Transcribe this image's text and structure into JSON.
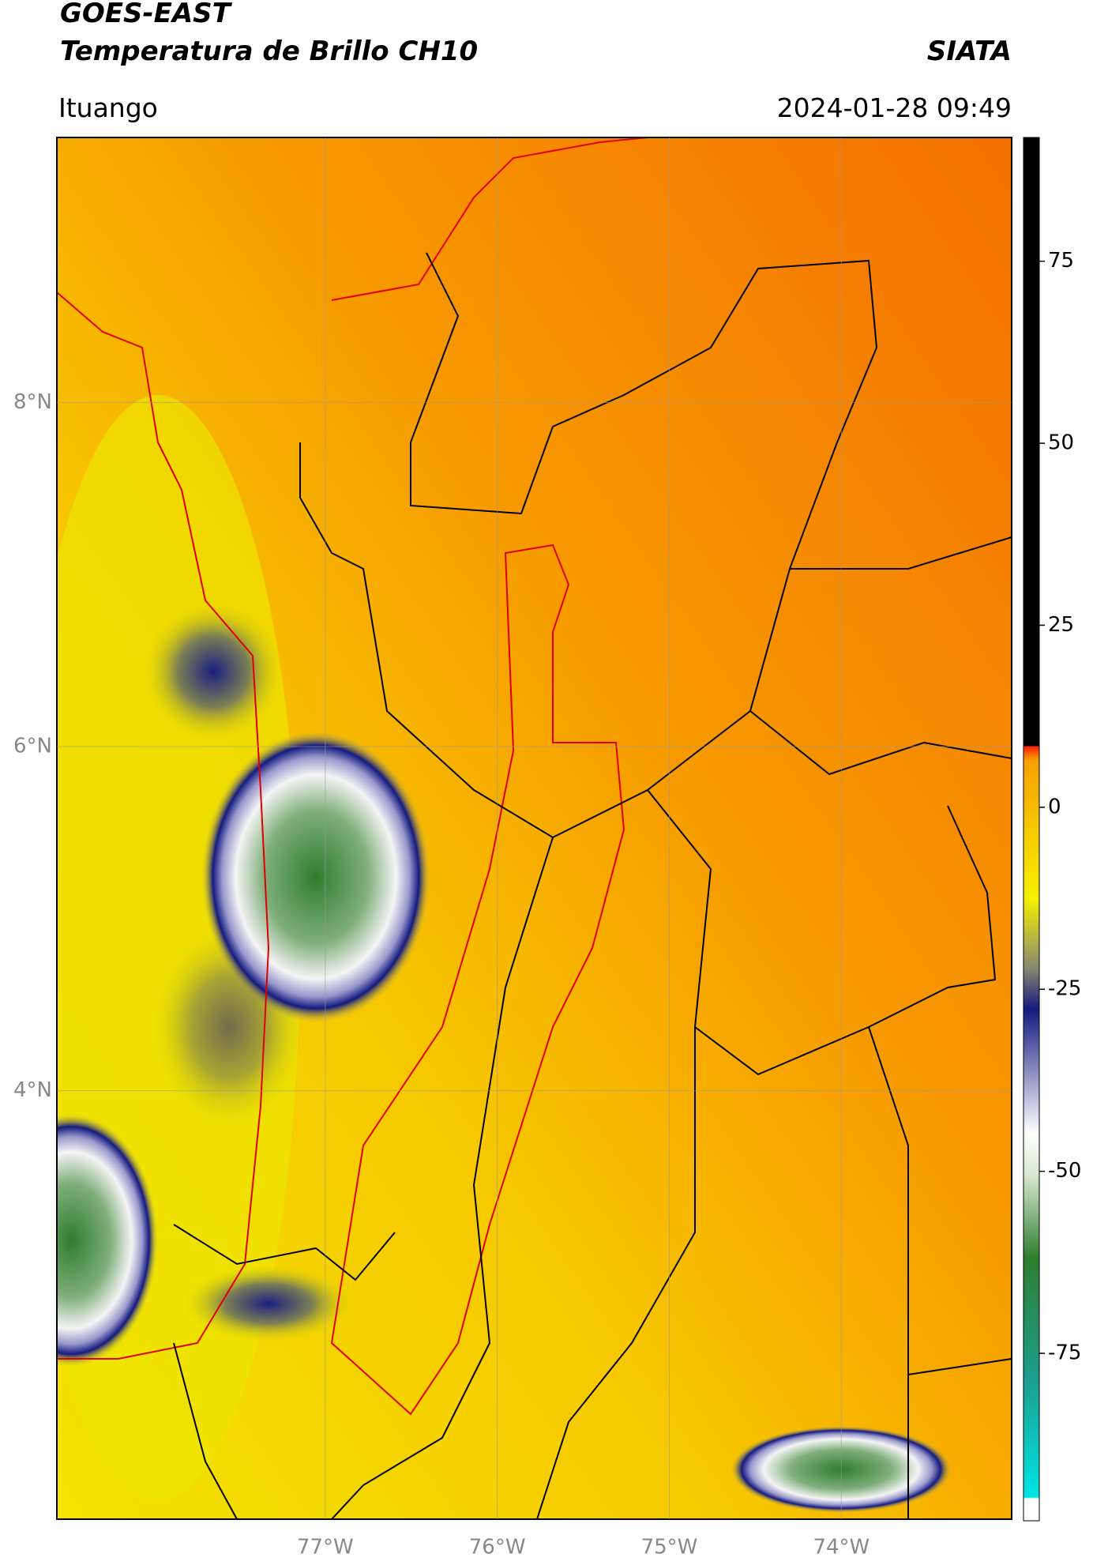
{
  "header": {
    "title": "GOES-EAST",
    "subtitle": "Temperatura de Brillo CH10",
    "source": "SIATA",
    "location": "Ituango",
    "timestamp": "2024-01-28 09:49"
  },
  "chart_data": {
    "type": "map",
    "xlim": [
      -78.56,
      -73.01
    ],
    "ylim": [
      1.51,
      9.54
    ],
    "xticks": [
      {
        "value": -77,
        "label": "77°W"
      },
      {
        "value": -76,
        "label": "76°W"
      },
      {
        "value": -75,
        "label": "75°W"
      },
      {
        "value": -74,
        "label": "74°W"
      }
    ],
    "yticks": [
      {
        "value": 4,
        "label": "4°N"
      },
      {
        "value": 6,
        "label": "6°N"
      },
      {
        "value": 8,
        "label": "8°N"
      }
    ],
    "grid": true,
    "colorbar": {
      "ylim": [
        -98,
        92
      ],
      "yticks": [
        -75,
        -50,
        -25,
        0,
        25,
        50,
        75
      ]
    }
  }
}
